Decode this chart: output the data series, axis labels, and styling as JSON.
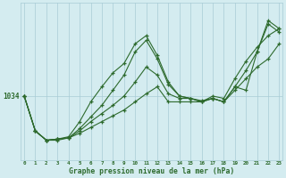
{
  "xlabel": "Graphe pression niveau de la mer (hPa)",
  "hours": [
    0,
    1,
    2,
    3,
    4,
    5,
    6,
    7,
    8,
    9,
    10,
    11,
    12,
    13,
    14,
    15,
    16,
    17,
    18,
    19,
    20,
    21,
    22,
    23
  ],
  "series": [
    [
      1034.0,
      1031.0,
      1030.2,
      1030.3,
      1030.5,
      1031.8,
      1033.5,
      1034.8,
      1036.0,
      1036.8,
      1038.5,
      1039.2,
      1037.5,
      1035.2,
      1034.0,
      1033.8,
      1033.6,
      1033.8,
      1033.5,
      1034.8,
      1034.5,
      1037.8,
      1040.2,
      1039.5
    ],
    [
      1034.0,
      1031.0,
      1030.2,
      1030.3,
      1030.4,
      1030.8,
      1031.3,
      1031.8,
      1032.3,
      1032.8,
      1033.5,
      1034.2,
      1034.8,
      1033.5,
      1033.5,
      1033.5,
      1033.5,
      1033.8,
      1033.5,
      1034.5,
      1035.5,
      1036.5,
      1037.2,
      1038.5
    ],
    [
      1034.0,
      1031.0,
      1030.2,
      1030.3,
      1030.4,
      1031.0,
      1031.8,
      1032.5,
      1033.2,
      1034.0,
      1035.2,
      1036.5,
      1035.8,
      1034.2,
      1033.8,
      1033.8,
      1033.5,
      1034.0,
      1033.8,
      1035.5,
      1037.0,
      1038.2,
      1039.2,
      1039.8
    ],
    [
      1034.0,
      1031.0,
      1030.2,
      1030.2,
      1030.4,
      1031.2,
      1032.2,
      1033.2,
      1034.5,
      1035.8,
      1037.8,
      1038.8,
      1037.2,
      1035.0,
      1034.0,
      1033.8,
      1033.5,
      1033.8,
      1033.5,
      1034.8,
      1036.2,
      1037.8,
      1040.5,
      1039.8
    ]
  ],
  "line_color": "#2d6a2d",
  "marker": "+",
  "bg_color": "#d4ecf0",
  "grid_color": "#a8ccd6",
  "tick_label_color": "#2d6a2d",
  "ylabel_value": 1034,
  "ylim": [
    1028.5,
    1042.0
  ],
  "xlim": [
    -0.3,
    23.3
  ],
  "xticks": [
    0,
    1,
    2,
    3,
    4,
    5,
    6,
    7,
    8,
    9,
    10,
    11,
    12,
    13,
    14,
    15,
    16,
    17,
    18,
    19,
    20,
    21,
    22,
    23
  ],
  "figsize": [
    3.2,
    2.0
  ],
  "dpi": 100
}
